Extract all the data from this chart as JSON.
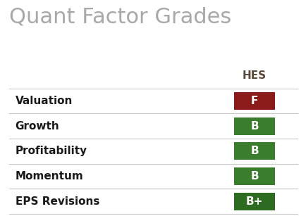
{
  "title": "Quant Factor Grades",
  "title_color": "#a8a8a8",
  "title_fontsize": 22,
  "column_header": "HES",
  "column_header_color": "#5a4a3a",
  "column_header_fontsize": 11,
  "background_color": "#ffffff",
  "factors": [
    "Valuation",
    "Growth",
    "Profitability",
    "Momentum",
    "EPS Revisions"
  ],
  "grades": [
    "F",
    "B",
    "B",
    "B",
    "B+"
  ],
  "grade_colors": [
    "#8b1a1a",
    "#3a7d2c",
    "#3a7d2c",
    "#3a7d2c",
    "#2e6b22"
  ],
  "factor_fontsize": 11,
  "grade_fontsize": 11,
  "row_line_color": "#c8c8c8",
  "fig_width": 4.35,
  "fig_height": 3.07
}
